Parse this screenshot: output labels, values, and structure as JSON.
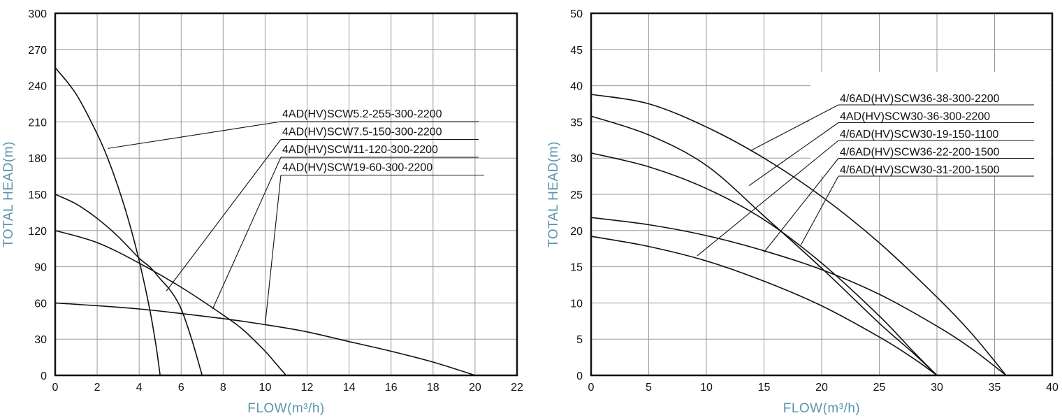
{
  "chart_data": [
    {
      "type": "line",
      "xlabel": "FLOW(m³/h)",
      "ylabel": "TOTAL HEAD(m)",
      "xlim": [
        0,
        22
      ],
      "ylim": [
        0,
        300
      ],
      "xticks": [
        "0",
        "2",
        "4",
        "6",
        "8",
        "10",
        "12",
        "14",
        "16",
        "18",
        "20",
        "22"
      ],
      "yticks": [
        "0",
        "30",
        "60",
        "90",
        "120",
        "150",
        "180",
        "210",
        "240",
        "270",
        "300"
      ],
      "grid": true,
      "series": [
        {
          "name": "4AD(HV)SCW5.2-255-300-2200",
          "x": [
            0,
            1,
            2,
            2.5,
            3,
            3.5,
            4,
            4.5,
            4.8,
            5.0
          ],
          "y": [
            255,
            233,
            200,
            180,
            156,
            128,
            95,
            55,
            25,
            0
          ],
          "callout_point": [
            2.5,
            188
          ]
        },
        {
          "name": "4AD(HV)SCW7.5-150-300-2200",
          "x": [
            0,
            1,
            2,
            3,
            4,
            4.5,
            5,
            5.5,
            6,
            6.5,
            7.0
          ],
          "y": [
            150,
            142,
            130,
            115,
            97,
            90,
            80,
            70,
            55,
            30,
            0
          ],
          "callout_point": [
            5.3,
            70
          ]
        },
        {
          "name": "4AD(HV)SCW11-120-300-2200",
          "x": [
            0,
            2,
            4,
            6,
            8,
            9,
            10,
            10.5,
            11.0
          ],
          "y": [
            120,
            110,
            93,
            73,
            50,
            37,
            20,
            10,
            0
          ],
          "callout_point": [
            7.5,
            55
          ]
        },
        {
          "name": "4AD(HV)SCW19-60-300-2200",
          "x": [
            0,
            4,
            8,
            10,
            12,
            14,
            16,
            18,
            20
          ],
          "y": [
            60,
            55,
            47,
            42,
            36,
            28,
            20,
            11,
            0
          ],
          "callout_point": [
            10.0,
            42
          ]
        }
      ]
    },
    {
      "type": "line",
      "xlabel": "FLOW(m³/h)",
      "ylabel": "TOTAL HEAD(m)",
      "xlim": [
        0,
        40
      ],
      "ylim": [
        0,
        50
      ],
      "xticks": [
        "0",
        "5",
        "10",
        "15",
        "20",
        "25",
        "30",
        "35",
        "40"
      ],
      "yticks": [
        "0",
        "5",
        "10",
        "15",
        "20",
        "25",
        "30",
        "35",
        "40",
        "45",
        "50"
      ],
      "grid": true,
      "series": [
        {
          "name": "4/6AD(HV)SCW36-38-300-2200",
          "x": [
            0,
            5,
            10,
            15,
            20,
            25,
            30,
            33,
            36
          ],
          "y": [
            38.8,
            37.5,
            34.3,
            30.0,
            24.7,
            18.3,
            10.8,
            5.8,
            0
          ],
          "callout_point": [
            13.8,
            31.0
          ]
        },
        {
          "name": "4AD(HV)SCW30-36-300-2200",
          "x": [
            0,
            5,
            10,
            15,
            20,
            25,
            28,
            30
          ],
          "y": [
            35.8,
            33.2,
            29.0,
            22.0,
            14.8,
            7.2,
            3.0,
            0
          ],
          "callout_point": [
            13.7,
            26.2
          ]
        },
        {
          "name": "4/6AD(HV)SCW30-19-150-1100",
          "x": [
            0,
            5,
            10,
            15,
            20,
            25,
            28,
            30
          ],
          "y": [
            19.2,
            17.8,
            15.8,
            13.0,
            9.6,
            5.3,
            2.3,
            0
          ],
          "callout_point": [
            9.2,
            16.5
          ]
        },
        {
          "name": "4/6AD(HV)SCW36-22-200-1500",
          "x": [
            0,
            5,
            10,
            15,
            20,
            25,
            30,
            33,
            36
          ],
          "y": [
            21.8,
            20.8,
            19.3,
            17.2,
            14.6,
            11.2,
            6.8,
            3.7,
            0
          ],
          "callout_point": [
            15.0,
            17.0
          ]
        },
        {
          "name": "4/6AD(HV)SCW30-31-200-1500",
          "x": [
            0,
            5,
            10,
            15,
            20,
            25,
            28,
            30
          ],
          "y": [
            30.7,
            28.8,
            25.8,
            21.5,
            15.5,
            8.2,
            3.2,
            0
          ],
          "callout_point": [
            18.2,
            18.0
          ]
        }
      ]
    }
  ]
}
